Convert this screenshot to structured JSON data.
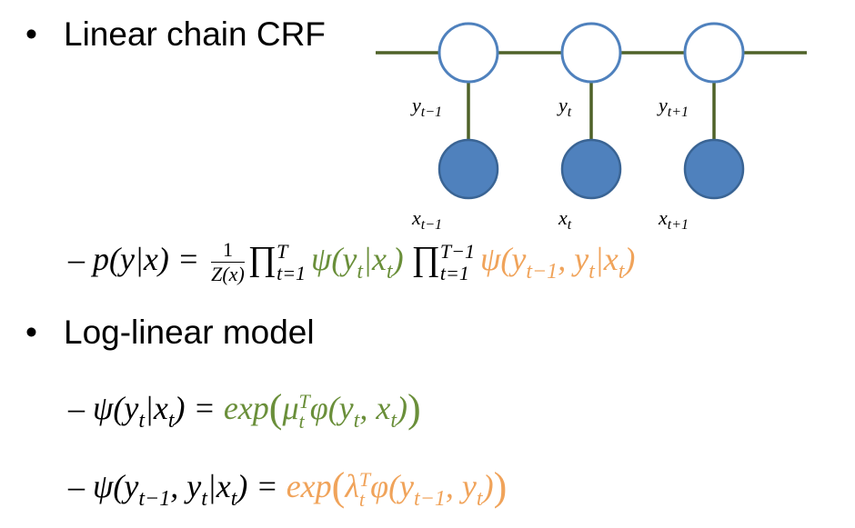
{
  "bullets": {
    "b1": "Linear chain CRF",
    "b2": "Log-linear model",
    "symbol": "•"
  },
  "diagram": {
    "line_color": "#4f6228",
    "hidden_fill": "#ffffff",
    "hidden_stroke": "#4f81bd",
    "observed_fill": "#4f81bd",
    "labels_y": [
      "y",
      "y",
      "y"
    ],
    "labels_y_sub": [
      "t−1",
      "t",
      "t+1"
    ],
    "labels_x": [
      "x",
      "x",
      "x"
    ],
    "labels_x_sub": [
      "t−1",
      "t",
      "t+1"
    ]
  },
  "eq1": {
    "dash": "–",
    "lhs": "p(y|x) =",
    "frac_num": "1",
    "frac_den": "Z(x)",
    "prod": "∏",
    "prod1_sup": "T",
    "prod1_sub": "t=1",
    "term1": "ψ(y",
    "term1_sub": "t",
    "term1_mid": "|x",
    "term1_sub2": "t",
    "term1_end": ")",
    "prod2_sup": "T−1",
    "prod2_sub": "t=1",
    "term2": "ψ(y",
    "term2_sub": "t−1",
    "term2_mid": ", y",
    "term2_sub2": "t",
    "term2_mid2": "|x",
    "term2_sub3": "t",
    "term2_end": ")"
  },
  "eq2": {
    "dash": "–",
    "lhs": "ψ(y",
    "lhs_sub": "t",
    "lhs_mid": "|x",
    "lhs_sub2": "t",
    "lhs_end": ") =",
    "exp": "exp",
    "mu": "μ",
    "mu_sup": "T",
    "mu_sub": "t",
    "phi": "φ(y",
    "phi_sub": "t",
    "phi_mid": ", x",
    "phi_sub2": "t",
    "phi_end": ")"
  },
  "eq3": {
    "dash": "–",
    "lhs": "ψ(y",
    "lhs_sub": "t−1",
    "lhs_mid": ", y",
    "lhs_sub2": "t",
    "lhs_mid2": "|x",
    "lhs_sub3": "t",
    "lhs_end": ") =",
    "exp": "exp",
    "lambda": "λ",
    "lambda_sup": "T",
    "lambda_sub": "t",
    "phi": "φ(y",
    "phi_sub": "t−1",
    "phi_mid": ", y",
    "phi_sub2": "t",
    "phi_end": ")"
  }
}
